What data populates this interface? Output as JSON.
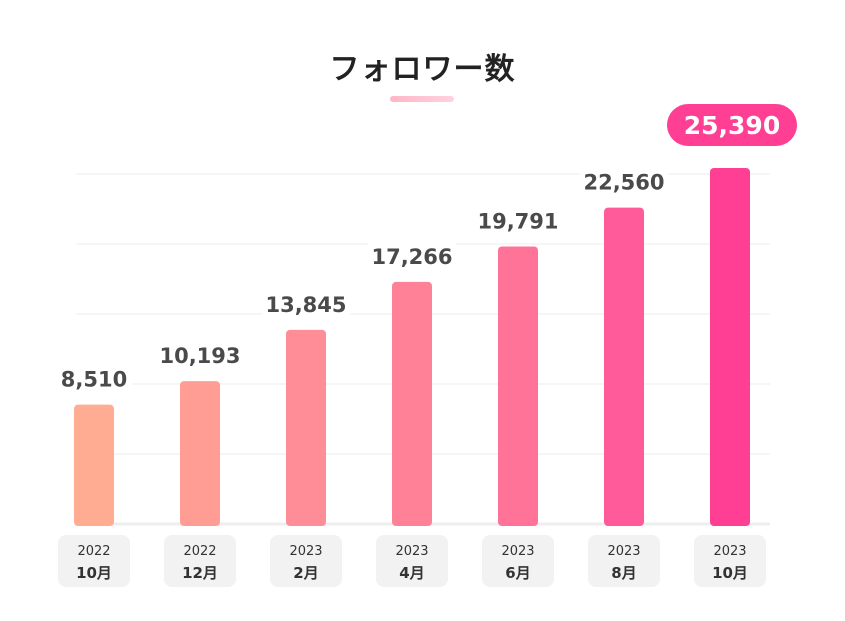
{
  "chart_data": {
    "type": "bar",
    "title": "フォロワー数",
    "categories": [
      {
        "year": "2022",
        "month": "10月"
      },
      {
        "year": "2022",
        "month": "12月"
      },
      {
        "year": "2023",
        "month": "2月"
      },
      {
        "year": "2023",
        "month": "4月"
      },
      {
        "year": "2023",
        "month": "6月"
      },
      {
        "year": "2023",
        "month": "8月"
      },
      {
        "year": "2023",
        "month": "10月"
      }
    ],
    "values": [
      8510,
      10193,
      13845,
      17266,
      19791,
      22560,
      25390
    ],
    "value_labels": [
      "8,510",
      "10,193",
      "13,845",
      "17,266",
      "19,791",
      "22,560",
      "25,390"
    ],
    "ylim": [
      0,
      25390
    ],
    "grid": true,
    "highlight_index": 6,
    "colors": [
      "#ffac93",
      "#ff9d95",
      "#ff8d97",
      "#ff8197",
      "#ff7399",
      "#ff5a9a",
      "#ff3f93"
    ],
    "highlight_badge_color": "#ff3f93"
  }
}
